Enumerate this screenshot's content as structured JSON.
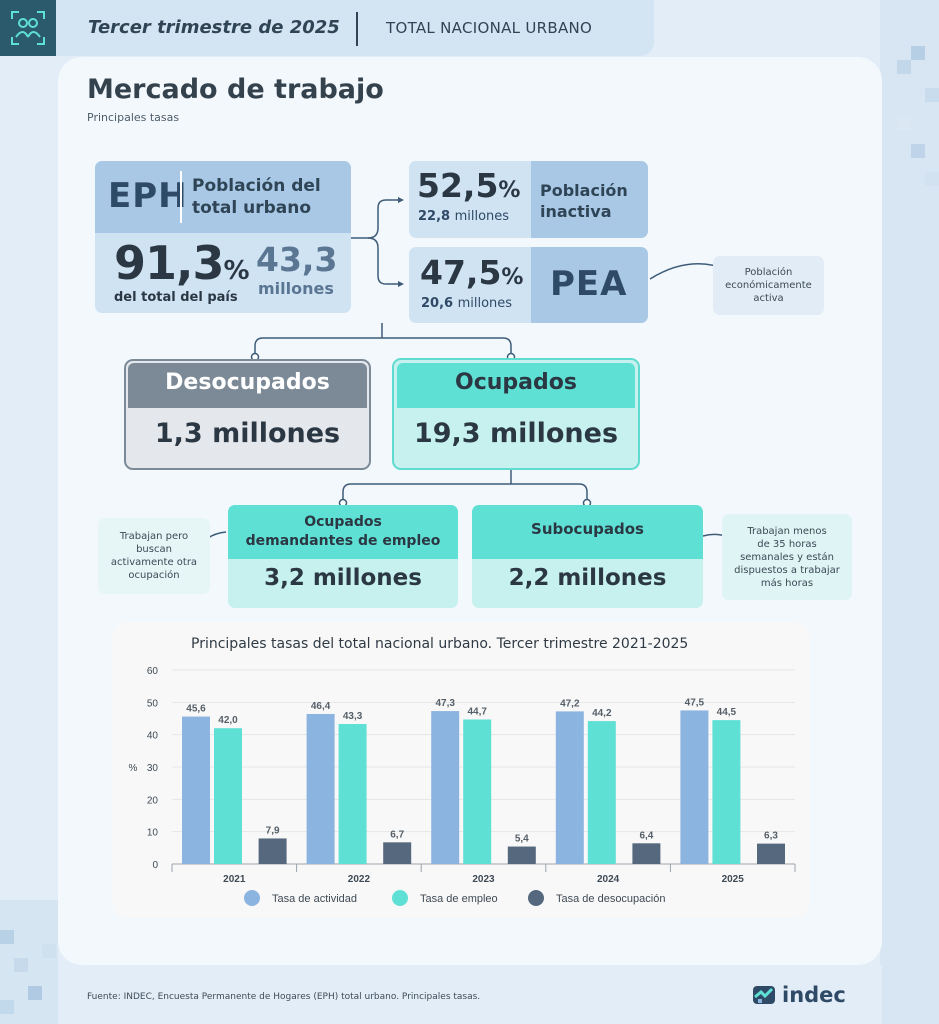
{
  "header": {
    "period": "Tercer trimestre de 2025",
    "region": "TOTAL NACIONAL URBANO"
  },
  "title": "Mercado de trabajo",
  "subtitle": "Principales tasas",
  "eph": {
    "label": "EPH",
    "description_line1": "Población del",
    "description_line2": "total urbano",
    "percent": "91,3",
    "percent_sign": "%",
    "percent_label": "del total del país",
    "millions_value": "43,3",
    "millions_label": "millones"
  },
  "inactiva": {
    "percent": "52,5",
    "percent_sign": "%",
    "millions_value": "22,8",
    "millions_label": "millones",
    "label_line1": "Población",
    "label_line2": "inactiva"
  },
  "pea": {
    "percent": "47,5",
    "percent_sign": "%",
    "millions_value": "20,6",
    "millions_label": "millones",
    "label": "PEA",
    "note_line1": "Población",
    "note_line2": "económicamente",
    "note_line3": "activa"
  },
  "desocupados": {
    "title": "Desocupados",
    "value": "1,3 millones"
  },
  "ocupados": {
    "title": "Ocupados",
    "value": "19,3 millones"
  },
  "demandantes": {
    "title_line1": "Ocupados",
    "title_line2": "demandantes de empleo",
    "value": "3,2 millones",
    "note_line1": "Trabajan pero",
    "note_line2": "buscan",
    "note_line3": "activamente otra",
    "note_line4": "ocupación"
  },
  "subocupados": {
    "title": "Subocupados",
    "value": "2,2 millones",
    "note_line1": "Trabajan menos",
    "note_line2": "de 35 horas",
    "note_line3": "semanales y están",
    "note_line4": "dispuestos a trabajar",
    "note_line5": "más horas"
  },
  "chart_data": {
    "type": "bar",
    "title": "Principales tasas del total nacional urbano. Tercer trimestre 2021-2025",
    "categories": [
      "2021",
      "2022",
      "2023",
      "2024",
      "2025"
    ],
    "series": [
      {
        "name": "Tasa de actividad",
        "color": "#8cb4e0",
        "values": [
          45.6,
          46.4,
          47.3,
          47.2,
          47.5
        ]
      },
      {
        "name": "Tasa de empleo",
        "color": "#5fe0d4",
        "values": [
          42.0,
          43.3,
          44.7,
          44.2,
          44.5
        ]
      },
      {
        "name": "Tasa de desocupación",
        "color": "#55687d",
        "values": [
          7.9,
          6.7,
          5.4,
          6.4,
          6.3
        ]
      }
    ],
    "value_labels": [
      [
        "45,6",
        "46,4",
        "47,3",
        "47,2",
        "47,5"
      ],
      [
        "42,0",
        "43,3",
        "44,7",
        "44,2",
        "44,5"
      ],
      [
        "7,9",
        "6,7",
        "5,4",
        "6,4",
        "6,3"
      ]
    ],
    "ylabel": "%",
    "ylim": [
      0,
      60
    ],
    "yticks": [
      "0",
      "10",
      "20",
      "30",
      "40",
      "50",
      "60"
    ],
    "grid": true,
    "legend": "bottom"
  },
  "footer": {
    "source": "Fuente: INDEC, Encuesta Permanente de Hogares (EPH) total urbano. Principales tasas.",
    "brand": "indec"
  }
}
